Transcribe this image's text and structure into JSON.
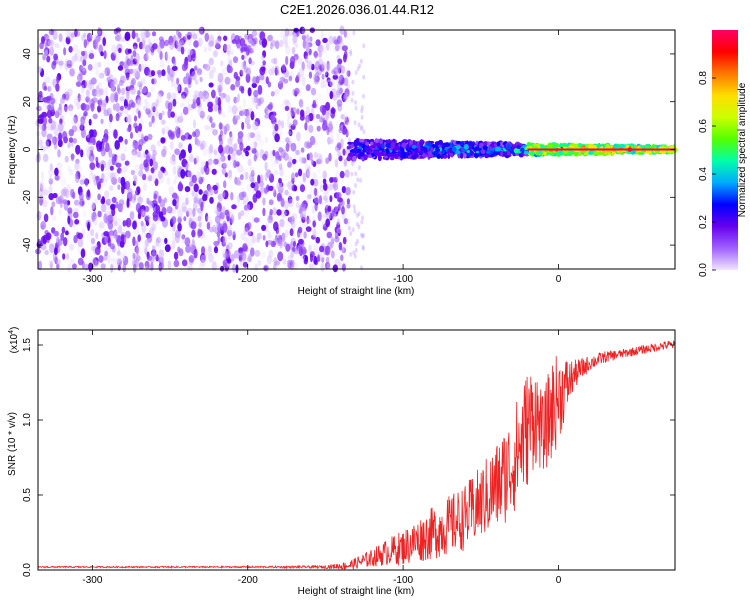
{
  "title": "C2E1.2026.036.01.44.R12",
  "chart_data": [
    {
      "type": "heatmap",
      "title": "C2E1.2026.036.01.44.R12",
      "xlabel": "Height of straight line (km)",
      "ylabel": "Frequency (Hz)",
      "xlim": [
        -335,
        75
      ],
      "ylim": [
        -50,
        50
      ],
      "xticks": [
        -300,
        -200,
        -100,
        0
      ],
      "yticks": [
        -40,
        -20,
        0,
        20,
        40
      ],
      "xtick_labels": [
        "-300",
        "-200",
        "-100",
        "0"
      ],
      "ytick_labels": [
        "-40",
        "-20",
        "0",
        "20",
        "40"
      ],
      "noise_region_x": [
        -335,
        -135
      ],
      "signal_band": {
        "x_start": -135,
        "x_end": 75,
        "center_freq": 0,
        "spread_hz_start": 4,
        "spread_hz_end": 1,
        "peak_amplitude_from_x": -20
      },
      "grid": false,
      "colorbar": {
        "label": "Normalized spectral amplitude",
        "range": [
          0,
          1
        ],
        "ticks": [
          0.0,
          0.2,
          0.4,
          0.6,
          0.8
        ],
        "tick_labels": [
          "0.0",
          "0.2",
          "0.4",
          "0.6",
          "0.8"
        ],
        "colormap": [
          "#f0e6ff",
          "#a060ff",
          "#6600ee",
          "#0000ff",
          "#00aaff",
          "#00ffaa",
          "#55ff00",
          "#ccff00",
          "#ffdd00",
          "#ff7700",
          "#ff0000",
          "#ff0066"
        ]
      }
    },
    {
      "type": "line",
      "xlabel": "Height of straight line (km)",
      "ylabel": "SNR (10 * v/v)",
      "y_multiplier": "(x10",
      "y_multiplier_exp": "4",
      "y_multiplier_close": ")",
      "xlim": [
        -335,
        75
      ],
      "ylim": [
        0,
        1.6
      ],
      "xticks": [
        -300,
        -200,
        -100,
        0
      ],
      "yticks": [
        0.0,
        0.5,
        1.0,
        1.5
      ],
      "xtick_labels": [
        "-300",
        "-200",
        "-100",
        "0"
      ],
      "ytick_labels": [
        "0.0",
        "0.5",
        "1.0",
        "1.5"
      ],
      "grid": false,
      "series": [
        {
          "color": "#ee2222",
          "x": [
            -335,
            -300,
            -250,
            -200,
            -150,
            -135,
            -120,
            -110,
            -100,
            -90,
            -80,
            -70,
            -60,
            -50,
            -40,
            -30,
            -20,
            -15,
            -10,
            -5,
            0,
            10,
            20,
            30,
            40,
            50,
            60,
            70,
            75
          ],
          "y": [
            0.02,
            0.02,
            0.02,
            0.02,
            0.02,
            0.03,
            0.08,
            0.12,
            0.15,
            0.2,
            0.25,
            0.3,
            0.35,
            0.45,
            0.55,
            0.7,
            0.95,
            1.05,
            0.9,
            1.05,
            1.15,
            1.3,
            1.38,
            1.42,
            1.44,
            1.46,
            1.48,
            1.5,
            1.5
          ],
          "noise": [
            0.005,
            0.005,
            0.005,
            0.005,
            0.01,
            0.03,
            0.06,
            0.09,
            0.12,
            0.15,
            0.18,
            0.2,
            0.22,
            0.25,
            0.3,
            0.35,
            0.4,
            0.35,
            0.25,
            0.35,
            0.3,
            0.1,
            0.05,
            0.04,
            0.03,
            0.03,
            0.03,
            0.03,
            0.03
          ]
        }
      ]
    }
  ]
}
